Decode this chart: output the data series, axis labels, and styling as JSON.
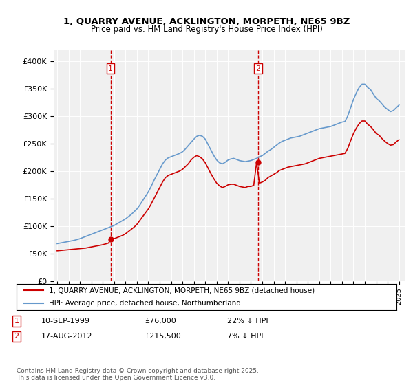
{
  "title_line1": "1, QUARRY AVENUE, ACKLINGTON, MORPETH, NE65 9BZ",
  "title_line2": "Price paid vs. HM Land Registry's House Price Index (HPI)",
  "legend_label_red": "1, QUARRY AVENUE, ACKLINGTON, MORPETH, NE65 9BZ (detached house)",
  "legend_label_blue": "HPI: Average price, detached house, Northumberland",
  "sale1_label": "1",
  "sale1_date": "10-SEP-1999",
  "sale1_price": "£76,000",
  "sale1_hpi": "22% ↓ HPI",
  "sale1_year": 1999.69,
  "sale1_value": 76000,
  "sale2_label": "2",
  "sale2_date": "17-AUG-2012",
  "sale2_price": "£215,500",
  "sale2_hpi": "7% ↓ HPI",
  "sale2_year": 2012.62,
  "sale2_value": 215500,
  "footer": "Contains HM Land Registry data © Crown copyright and database right 2025.\nThis data is licensed under the Open Government Licence v3.0.",
  "ylim": [
    0,
    420000
  ],
  "yticks": [
    0,
    50000,
    100000,
    150000,
    200000,
    250000,
    300000,
    350000,
    400000
  ],
  "ytick_labels": [
    "£0",
    "£50K",
    "£100K",
    "£150K",
    "£200K",
    "£250K",
    "£300K",
    "£350K",
    "£400K"
  ],
  "color_red": "#cc0000",
  "color_blue": "#6699cc",
  "color_vline": "#cc0000",
  "background_plot": "#f0f0f0",
  "background_fig": "#ffffff",
  "hpi_years": [
    1995.0,
    1995.25,
    1995.5,
    1995.75,
    1996.0,
    1996.25,
    1996.5,
    1996.75,
    1997.0,
    1997.25,
    1997.5,
    1997.75,
    1998.0,
    1998.25,
    1998.5,
    1998.75,
    1999.0,
    1999.25,
    1999.5,
    1999.75,
    2000.0,
    2000.25,
    2000.5,
    2000.75,
    2001.0,
    2001.25,
    2001.5,
    2001.75,
    2002.0,
    2002.25,
    2002.5,
    2002.75,
    2003.0,
    2003.25,
    2003.5,
    2003.75,
    2004.0,
    2004.25,
    2004.5,
    2004.75,
    2005.0,
    2005.25,
    2005.5,
    2005.75,
    2006.0,
    2006.25,
    2006.5,
    2006.75,
    2007.0,
    2007.25,
    2007.5,
    2007.75,
    2008.0,
    2008.25,
    2008.5,
    2008.75,
    2009.0,
    2009.25,
    2009.5,
    2009.75,
    2010.0,
    2010.25,
    2010.5,
    2010.75,
    2011.0,
    2011.25,
    2011.5,
    2011.75,
    2012.0,
    2012.25,
    2012.5,
    2012.75,
    2013.0,
    2013.25,
    2013.5,
    2013.75,
    2014.0,
    2014.25,
    2014.5,
    2014.75,
    2015.0,
    2015.25,
    2015.5,
    2015.75,
    2016.0,
    2016.25,
    2016.5,
    2016.75,
    2017.0,
    2017.25,
    2017.5,
    2017.75,
    2018.0,
    2018.25,
    2018.5,
    2018.75,
    2019.0,
    2019.25,
    2019.5,
    2019.75,
    2020.0,
    2020.25,
    2020.5,
    2020.75,
    2021.0,
    2021.25,
    2021.5,
    2021.75,
    2022.0,
    2022.25,
    2022.5,
    2022.75,
    2023.0,
    2023.25,
    2023.5,
    2023.75,
    2024.0,
    2024.25,
    2024.5,
    2024.75,
    2025.0
  ],
  "hpi_values": [
    68000,
    69000,
    70000,
    71000,
    72000,
    73000,
    74000,
    75500,
    77000,
    79000,
    81000,
    83000,
    85000,
    87000,
    89000,
    91000,
    93000,
    95000,
    97000,
    99000,
    101000,
    104000,
    107000,
    110000,
    113000,
    117000,
    121000,
    126000,
    131000,
    138000,
    146000,
    154000,
    162000,
    172000,
    183000,
    193000,
    203000,
    213000,
    220000,
    224000,
    226000,
    228000,
    230000,
    232000,
    235000,
    240000,
    246000,
    252000,
    258000,
    263000,
    265000,
    263000,
    258000,
    248000,
    238000,
    228000,
    220000,
    215000,
    213000,
    216000,
    220000,
    222000,
    223000,
    221000,
    219000,
    218000,
    217000,
    218000,
    219000,
    221000,
    223000,
    226000,
    228000,
    232000,
    236000,
    239000,
    243000,
    247000,
    251000,
    254000,
    256000,
    258000,
    260000,
    261000,
    262000,
    263000,
    265000,
    267000,
    269000,
    271000,
    273000,
    275000,
    277000,
    278000,
    279000,
    280000,
    281000,
    283000,
    285000,
    287000,
    289000,
    290000,
    300000,
    315000,
    330000,
    342000,
    352000,
    358000,
    358000,
    352000,
    348000,
    340000,
    332000,
    328000,
    322000,
    316000,
    312000,
    308000,
    310000,
    315000,
    320000
  ],
  "red_years": [
    1995.0,
    1995.25,
    1995.5,
    1995.75,
    1996.0,
    1996.25,
    1996.5,
    1996.75,
    1997.0,
    1997.25,
    1997.5,
    1997.75,
    1998.0,
    1998.25,
    1998.5,
    1998.75,
    1999.0,
    1999.25,
    1999.5,
    1999.75,
    2000.0,
    2000.25,
    2000.5,
    2000.75,
    2001.0,
    2001.25,
    2001.5,
    2001.75,
    2002.0,
    2002.25,
    2002.5,
    2002.75,
    2003.0,
    2003.25,
    2003.5,
    2003.75,
    2004.0,
    2004.25,
    2004.5,
    2004.75,
    2005.0,
    2005.25,
    2005.5,
    2005.75,
    2006.0,
    2006.25,
    2006.5,
    2006.75,
    2007.0,
    2007.25,
    2007.5,
    2007.75,
    2008.0,
    2008.25,
    2008.5,
    2008.75,
    2009.0,
    2009.25,
    2009.5,
    2009.75,
    2010.0,
    2010.25,
    2010.5,
    2010.75,
    2011.0,
    2011.25,
    2011.5,
    2011.75,
    2012.0,
    2012.25,
    2012.5,
    2012.75,
    2013.0,
    2013.25,
    2013.5,
    2013.75,
    2014.0,
    2014.25,
    2014.5,
    2014.75,
    2015.0,
    2015.25,
    2015.5,
    2015.75,
    2016.0,
    2016.25,
    2016.5,
    2016.75,
    2017.0,
    2017.25,
    2017.5,
    2017.75,
    2018.0,
    2018.25,
    2018.5,
    2018.75,
    2019.0,
    2019.25,
    2019.5,
    2019.75,
    2020.0,
    2020.25,
    2020.5,
    2020.75,
    2021.0,
    2021.25,
    2021.5,
    2021.75,
    2022.0,
    2022.25,
    2022.5,
    2022.75,
    2023.0,
    2023.25,
    2023.5,
    2023.75,
    2024.0,
    2024.25,
    2024.5,
    2024.75,
    2025.0
  ],
  "red_values": [
    55000,
    55500,
    56000,
    56500,
    57000,
    57500,
    58000,
    58500,
    59000,
    59500,
    60000,
    61000,
    62000,
    63000,
    64000,
    65000,
    66000,
    67500,
    69000,
    76000,
    77000,
    79000,
    81000,
    83000,
    86000,
    90000,
    94000,
    98000,
    103000,
    110000,
    117000,
    124000,
    131000,
    140000,
    150000,
    160000,
    170000,
    180000,
    188000,
    192000,
    194000,
    196000,
    198000,
    200000,
    203000,
    208000,
    213000,
    220000,
    225000,
    228000,
    226000,
    222000,
    215000,
    205000,
    195000,
    186000,
    178000,
    173000,
    170000,
    172000,
    175000,
    176000,
    176000,
    174000,
    172000,
    171000,
    170000,
    172000,
    172000,
    174000,
    215500,
    178000,
    180000,
    183000,
    188000,
    191000,
    194000,
    197000,
    201000,
    203000,
    205000,
    207000,
    208000,
    209000,
    210000,
    211000,
    212000,
    213000,
    215000,
    217000,
    219000,
    221000,
    223000,
    224000,
    225000,
    226000,
    227000,
    228000,
    229000,
    230000,
    231000,
    232000,
    241000,
    255000,
    268000,
    278000,
    286000,
    291000,
    291000,
    285000,
    281000,
    275000,
    268000,
    265000,
    259000,
    254000,
    250000,
    247000,
    248000,
    253000,
    257000
  ]
}
